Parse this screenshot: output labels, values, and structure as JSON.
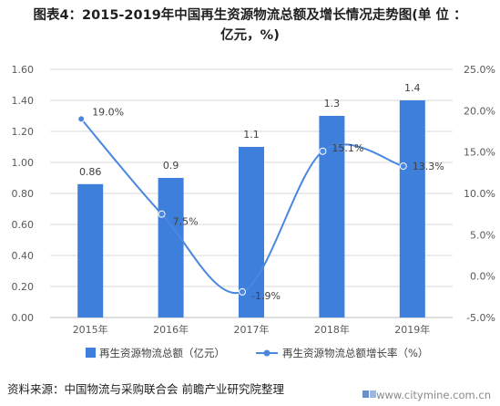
{
  "title": {
    "line1": "图表4：2015-2019年中国再生资源物流总额及增长情况走势图(单 位 ：",
    "line2": "亿元，%)"
  },
  "source": "资料来源：中国物流与采购联合会 前瞻产业研究院整理",
  "site": "www.citymine.com.cn",
  "colors": {
    "bar": "#3f7fdc",
    "line": "#4a87e0",
    "axis_text": "#595959",
    "grid": "#d9d9d9"
  },
  "chart_data": {
    "type": "bar+line",
    "categories": [
      "2015年",
      "2016年",
      "2017年",
      "2018年",
      "2019年"
    ],
    "series": [
      {
        "name": "再生资源物流总额（亿元）",
        "type": "bar",
        "axis": "left",
        "values": [
          0.86,
          0.9,
          1.1,
          1.3,
          1.4
        ],
        "labels": [
          "0.86",
          "0.9",
          "1.1",
          "1.3",
          "1.4"
        ]
      },
      {
        "name": "再生资源物流总额增长率（%）",
        "type": "line",
        "axis": "right",
        "values": [
          19.0,
          7.5,
          -1.9,
          15.1,
          13.3
        ],
        "labels": [
          "19.0%",
          "7.5%",
          "-1.9%",
          "15.1%",
          "13.3%"
        ]
      }
    ],
    "y_left": {
      "min": 0,
      "max": 1.6,
      "ticks": [
        "0.00",
        "0.20",
        "0.40",
        "0.60",
        "0.80",
        "1.00",
        "1.20",
        "1.40",
        "1.60"
      ]
    },
    "y_right": {
      "min": -5,
      "max": 25,
      "ticks": [
        "-5.0%",
        "0.0%",
        "5.0%",
        "10.0%",
        "15.0%",
        "20.0%",
        "25.0%"
      ]
    },
    "grid": true,
    "legend": "bottom"
  }
}
